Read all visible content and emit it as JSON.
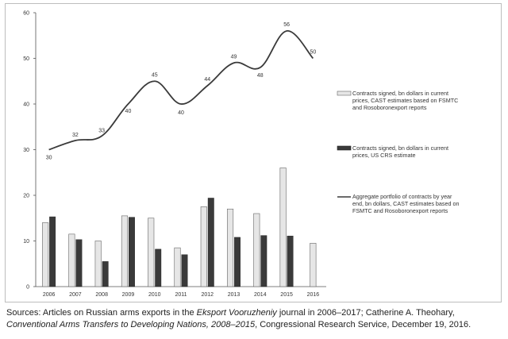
{
  "chart_data": {
    "type": "bar+line",
    "categories": [
      "2006",
      "2007",
      "2008",
      "2009",
      "2010",
      "2011",
      "2012",
      "2013",
      "2014",
      "2015",
      "2016"
    ],
    "series": [
      {
        "name": "Contracts signed, bn dollars in current prices, CAST estimates based on FSMTC and Rosoboronexport reports",
        "kind": "bar",
        "color": "#e6e6e6",
        "values": [
          14,
          11.5,
          10,
          15.5,
          15,
          8.5,
          17.5,
          17,
          16,
          26,
          9.5
        ]
      },
      {
        "name": "Contracts signed, bn dollars in current prices, US CRS estimate",
        "kind": "bar",
        "color": "#3a3a3a",
        "values": [
          15.3,
          10.3,
          5.5,
          15.2,
          8.2,
          7,
          19.4,
          10.8,
          11.2,
          11.1,
          null
        ]
      },
      {
        "name": "Aggregate portfolio of contracts by year end, bn dollars, CAST estimates based on FSMTC and Rosoboronexport reports",
        "kind": "line",
        "color": "#3a3a3a",
        "x": [
          "2006",
          "2007",
          "2008",
          "2009",
          "2010",
          "2011",
          "2012",
          "2013",
          "2014",
          "2015"
        ],
        "values": [
          30,
          32,
          33,
          40,
          45,
          40,
          44,
          49,
          48,
          56
        ],
        "end_value": 50
      }
    ],
    "point_labels": [
      "30",
      "32",
      "33",
      "40",
      "45",
      "40",
      "44",
      "49",
      "48",
      "56",
      "50"
    ],
    "yticks": [
      "0",
      "10",
      "20",
      "30",
      "40",
      "50",
      "60"
    ],
    "ylim": [
      0,
      60
    ],
    "legend_lines": [
      [
        "Contracts signed, bn dollars in current",
        "prices, CAST estimates based on FSMTC",
        "and Rosoboronexport reports"
      ],
      [
        "Contracts signed, bn dollars in current",
        "prices, US CRS estimate"
      ],
      [
        "Aggregate portfolio of contracts by year",
        "end, bn dollars, CAST estimates based on",
        "FSMTC and Rosoboronexport reports"
      ]
    ],
    "legend_position": "right"
  },
  "source": {
    "prefix": "Sources: Articles on Russian arms exports in the ",
    "journal": "Eksport Vooruzheniy",
    "mid": " journal in 2006–2017; Catherine A. Theohary,",
    "book": "Conventional Arms Transfers to Developing Nations, 2008–2015",
    "suffix": ", Congressional Research Service, December 19, 2016."
  }
}
